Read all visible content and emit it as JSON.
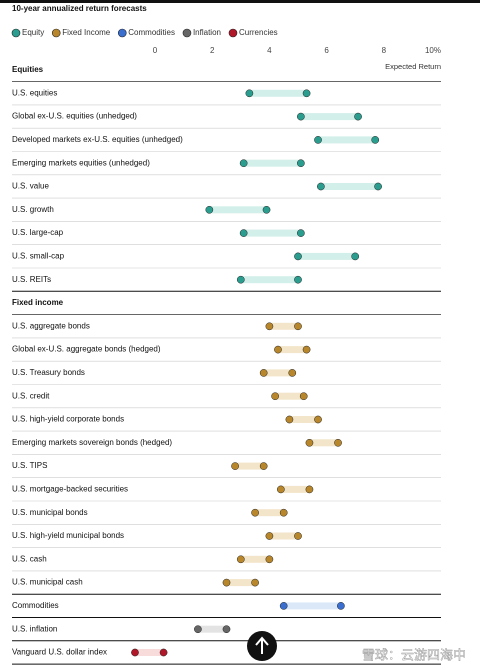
{
  "chart_data": {
    "type": "range",
    "title": "10-year annualized return forecasts",
    "axis_label": "Expected Return",
    "xlim": [
      -5,
      10
    ],
    "xticks": [
      0,
      2,
      4,
      6,
      8,
      {
        "value": 10,
        "label": "10%"
      }
    ],
    "legend": "top-left",
    "watermark": "雪球：云游四海中",
    "series": [
      {
        "name": "Equity",
        "heading": "Equities",
        "color": "#2a9d8f",
        "band_color": "#d3efea",
        "categories": [
          "U.S. equities",
          "Global ex-U.S. equities (unhedged)",
          "Developed markets ex-U.S. equities (unhedged)",
          "Emerging markets equities (unhedged)",
          "U.S. value",
          "U.S. growth",
          "U.S. large-cap",
          "U.S. small-cap",
          "U.S. REITs"
        ],
        "low": [
          3.3,
          5.1,
          5.7,
          3.1,
          5.8,
          1.9,
          3.1,
          5.0,
          3.0
        ],
        "high": [
          5.3,
          7.1,
          7.7,
          5.1,
          7.8,
          3.9,
          5.1,
          7.0,
          5.0
        ]
      },
      {
        "name": "Fixed Income",
        "heading": "Fixed income",
        "color": "#b8862b",
        "band_color": "#f3e5c9",
        "categories": [
          "U.S. aggregate bonds",
          "Global ex-U.S. aggregate bonds (hedged)",
          "U.S. Treasury bonds",
          "U.S. credit",
          "U.S. high-yield corporate bonds",
          "Emerging markets sovereign bonds (hedged)",
          "U.S. TIPS",
          "U.S. mortgage-backed securities",
          "U.S. municipal bonds",
          "U.S. high-yield municipal bonds",
          "U.S. cash",
          "U.S. municipal cash"
        ],
        "low": [
          4.0,
          4.3,
          3.8,
          4.2,
          4.7,
          5.4,
          2.8,
          4.4,
          3.5,
          4.0,
          3.0,
          2.5
        ],
        "high": [
          5.0,
          5.3,
          4.8,
          5.2,
          5.7,
          6.4,
          3.8,
          5.4,
          4.5,
          5.0,
          4.0,
          3.5
        ]
      },
      {
        "name": "Commodities",
        "color": "#3a6fd0",
        "band_color": "#dbe8f8",
        "categories": [
          "Commodities"
        ],
        "low": [
          4.5
        ],
        "high": [
          6.5
        ]
      },
      {
        "name": "Inflation",
        "color": "#666666",
        "band_color": "#e3e3e3",
        "categories": [
          "U.S. inflation"
        ],
        "low": [
          1.5
        ],
        "high": [
          2.5
        ]
      },
      {
        "name": "Currencies",
        "color": "#b0182a",
        "band_color": "#f8dcdc",
        "categories": [
          "Vanguard U.S. dollar index"
        ],
        "low": [
          -0.7
        ],
        "high": [
          0.3
        ]
      }
    ]
  }
}
